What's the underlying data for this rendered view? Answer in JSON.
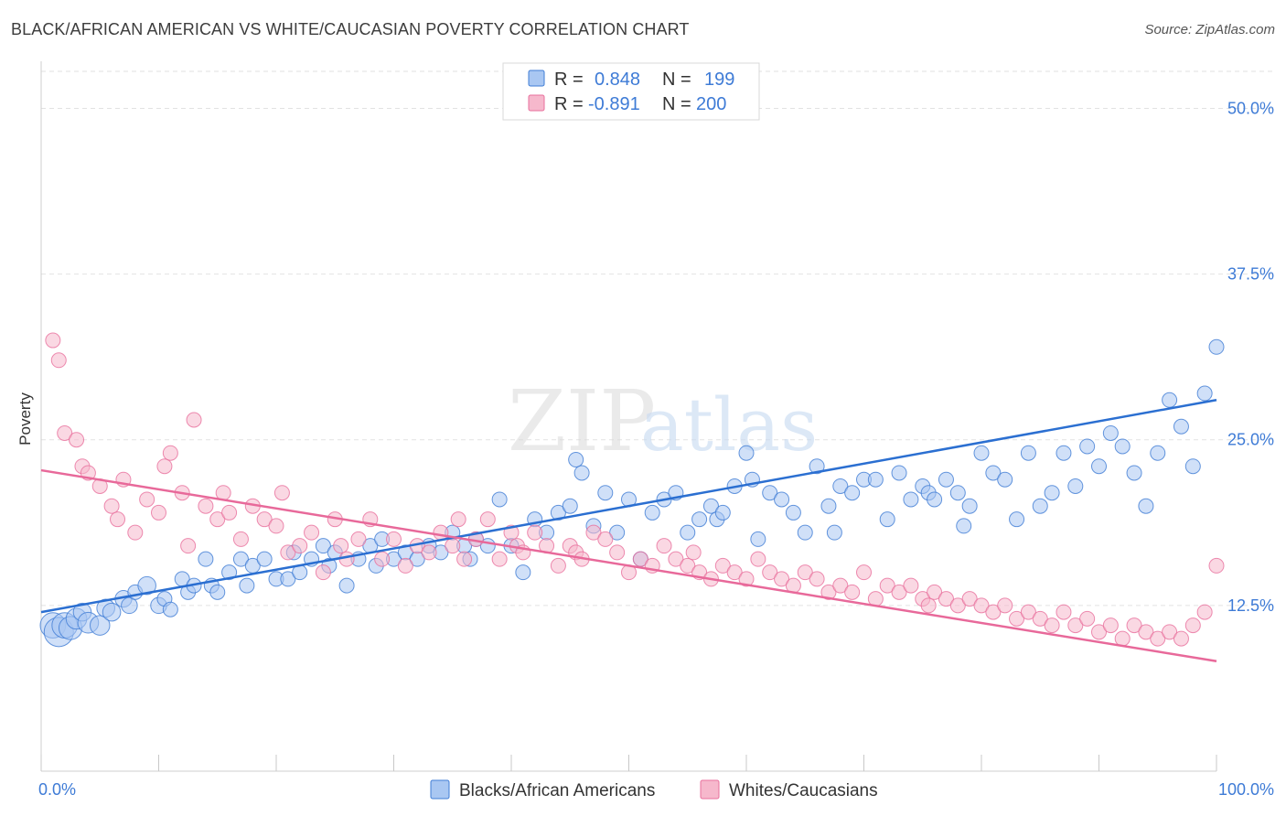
{
  "header": {
    "title": "BLACK/AFRICAN AMERICAN VS WHITE/CAUCASIAN POVERTY CORRELATION CHART",
    "source": "Source: ZipAtlas.com"
  },
  "watermark": {
    "zip": "ZIP",
    "atlas": "atlas"
  },
  "colors": {
    "blue": "#3f7cd5",
    "blue_fill": "#a9c7f2",
    "blue_line": "#2b6fd1",
    "pink": "#e86f9c",
    "pink_fill": "#f6b8cc",
    "pink_line": "#e8699a",
    "axis_text": "#3e7bd6"
  },
  "legend": {
    "r_label": "R =",
    "n_label": "N =",
    "rows": [
      {
        "r": "0.848",
        "n": "199"
      },
      {
        "r": "-0.891",
        "n": "200"
      }
    ]
  },
  "chart_data": {
    "type": "scatter",
    "title": "BLACK/AFRICAN AMERICAN VS WHITE/CAUCASIAN POVERTY CORRELATION CHART",
    "xlabel": "",
    "ylabel": "Poverty",
    "xlim": [
      0,
      100
    ],
    "ylim": [
      0,
      53
    ],
    "x_tick_labels": [
      "0.0%",
      "100.0%"
    ],
    "y_ticks": [
      12.5,
      25.0,
      37.5,
      50.0
    ],
    "y_tick_labels": [
      "12.5%",
      "25.0%",
      "37.5%",
      "50.0%"
    ],
    "grid": "horizontal dashed",
    "legend_position": "top-center",
    "series": [
      {
        "name": "Blacks/African Americans",
        "r": 0.848,
        "n": 199,
        "trend": {
          "x": [
            0,
            100
          ],
          "y": [
            12.0,
            28.0
          ]
        },
        "points": [
          [
            1,
            11,
            3
          ],
          [
            1.5,
            10.5,
            4
          ],
          [
            2,
            11,
            3
          ],
          [
            2.5,
            10.8,
            2.5
          ],
          [
            3,
            11.5,
            2
          ],
          [
            3.5,
            12,
            1.5
          ],
          [
            4,
            11.2,
            2
          ],
          [
            5,
            11,
            1.8
          ],
          [
            5.5,
            12.3,
            1.5
          ],
          [
            6,
            12,
            1.5
          ],
          [
            7,
            13,
            1.3
          ],
          [
            7.5,
            12.5,
            1.2
          ],
          [
            8,
            13.5,
            1
          ],
          [
            9,
            14,
            1.5
          ],
          [
            10,
            12.5,
            1.2
          ],
          [
            10.5,
            13,
            1
          ],
          [
            11,
            12.2,
            1
          ],
          [
            12,
            14.5,
            1
          ],
          [
            12.5,
            13.5,
            1
          ],
          [
            13,
            14,
            1
          ],
          [
            14,
            16,
            1
          ],
          [
            14.5,
            14,
            1
          ],
          [
            15,
            13.5,
            1
          ],
          [
            16,
            15,
            1
          ],
          [
            17,
            16,
            1
          ],
          [
            17.5,
            14,
            1
          ],
          [
            18,
            15.5,
            1
          ],
          [
            19,
            16,
            1
          ],
          [
            20,
            14.5,
            1
          ],
          [
            21,
            14.5,
            1
          ],
          [
            21.5,
            16.5,
            1
          ],
          [
            22,
            15,
            1
          ],
          [
            23,
            16,
            1
          ],
          [
            24,
            17,
            1
          ],
          [
            24.5,
            15.5,
            1
          ],
          [
            25,
            16.5,
            1
          ],
          [
            26,
            14,
            1
          ],
          [
            27,
            16,
            1
          ],
          [
            28,
            17,
            1
          ],
          [
            28.5,
            15.5,
            1
          ],
          [
            29,
            17.5,
            1
          ],
          [
            30,
            16,
            1
          ],
          [
            31,
            16.5,
            1
          ],
          [
            32,
            16,
            1
          ],
          [
            33,
            17,
            1
          ],
          [
            34,
            16.5,
            1
          ],
          [
            35,
            18,
            1
          ],
          [
            36,
            17,
            1
          ],
          [
            36.5,
            16,
            1
          ],
          [
            37,
            17.5,
            1
          ],
          [
            38,
            17,
            1
          ],
          [
            39,
            20.5,
            1
          ],
          [
            40,
            17,
            1
          ],
          [
            41,
            15,
            1
          ],
          [
            42,
            19,
            1
          ],
          [
            43,
            18,
            1
          ],
          [
            44,
            19.5,
            1
          ],
          [
            45,
            20,
            1
          ],
          [
            45.5,
            23.5,
            1
          ],
          [
            46,
            22.5,
            1
          ],
          [
            47,
            18.5,
            1
          ],
          [
            48,
            21,
            1
          ],
          [
            49,
            18,
            1
          ],
          [
            50,
            20.5,
            1
          ],
          [
            51,
            16,
            1
          ],
          [
            52,
            19.5,
            1
          ],
          [
            53,
            20.5,
            1
          ],
          [
            54,
            21,
            1
          ],
          [
            55,
            18,
            1
          ],
          [
            56,
            19,
            1
          ],
          [
            57,
            20,
            1
          ],
          [
            57.5,
            19,
            1
          ],
          [
            58,
            19.5,
            1
          ],
          [
            59,
            21.5,
            1
          ],
          [
            60,
            24,
            1
          ],
          [
            60.5,
            22,
            1
          ],
          [
            61,
            17.5,
            1
          ],
          [
            62,
            21,
            1
          ],
          [
            63,
            20.5,
            1
          ],
          [
            64,
            19.5,
            1
          ],
          [
            65,
            18,
            1
          ],
          [
            66,
            23,
            1
          ],
          [
            67,
            20,
            1
          ],
          [
            67.5,
            18,
            1
          ],
          [
            68,
            21.5,
            1
          ],
          [
            69,
            21,
            1
          ],
          [
            70,
            22,
            1
          ],
          [
            71,
            22,
            1
          ],
          [
            72,
            19,
            1
          ],
          [
            73,
            22.5,
            1
          ],
          [
            74,
            20.5,
            1
          ],
          [
            75,
            21.5,
            1
          ],
          [
            75.5,
            21,
            1
          ],
          [
            76,
            20.5,
            1
          ],
          [
            77,
            22,
            1
          ],
          [
            78,
            21,
            1
          ],
          [
            78.5,
            18.5,
            1
          ],
          [
            79,
            20,
            1
          ],
          [
            80,
            24,
            1
          ],
          [
            81,
            22.5,
            1
          ],
          [
            82,
            22,
            1
          ],
          [
            83,
            19,
            1
          ],
          [
            84,
            24,
            1
          ],
          [
            85,
            20,
            1
          ],
          [
            86,
            21,
            1
          ],
          [
            87,
            24,
            1
          ],
          [
            88,
            21.5,
            1
          ],
          [
            89,
            24.5,
            1
          ],
          [
            90,
            23,
            1
          ],
          [
            91,
            25.5,
            1
          ],
          [
            92,
            24.5,
            1
          ],
          [
            93,
            22.5,
            1
          ],
          [
            94,
            20,
            1
          ],
          [
            95,
            24,
            1
          ],
          [
            96,
            28,
            1
          ],
          [
            97,
            26,
            1
          ],
          [
            98,
            23,
            1
          ],
          [
            99,
            28.5,
            1
          ],
          [
            100,
            32,
            1
          ]
        ]
      },
      {
        "name": "Whites/Caucasians",
        "r": -0.891,
        "n": 200,
        "trend": {
          "x": [
            0,
            100
          ],
          "y": [
            22.7,
            8.3
          ]
        },
        "points": [
          [
            1,
            32.5,
            1
          ],
          [
            1.5,
            31,
            1
          ],
          [
            2,
            25.5,
            1
          ],
          [
            3,
            25,
            1
          ],
          [
            3.5,
            23,
            1
          ],
          [
            4,
            22.5,
            1
          ],
          [
            5,
            21.5,
            1
          ],
          [
            6,
            20,
            1
          ],
          [
            6.5,
            19,
            1
          ],
          [
            7,
            22,
            1
          ],
          [
            8,
            18,
            1
          ],
          [
            9,
            20.5,
            1
          ],
          [
            10,
            19.5,
            1
          ],
          [
            10.5,
            23,
            1
          ],
          [
            11,
            24,
            1
          ],
          [
            12,
            21,
            1
          ],
          [
            12.5,
            17,
            1
          ],
          [
            13,
            26.5,
            1
          ],
          [
            14,
            20,
            1
          ],
          [
            15,
            19,
            1
          ],
          [
            15.5,
            21,
            1
          ],
          [
            16,
            19.5,
            1
          ],
          [
            17,
            17.5,
            1
          ],
          [
            18,
            20,
            1
          ],
          [
            19,
            19,
            1
          ],
          [
            20,
            18.5,
            1
          ],
          [
            20.5,
            21,
            1
          ],
          [
            21,
            16.5,
            1
          ],
          [
            22,
            17,
            1
          ],
          [
            23,
            18,
            1
          ],
          [
            24,
            15,
            1
          ],
          [
            25,
            19,
            1
          ],
          [
            25.5,
            17,
            1
          ],
          [
            26,
            16,
            1
          ],
          [
            27,
            17.5,
            1
          ],
          [
            28,
            19,
            1
          ],
          [
            29,
            16,
            1
          ],
          [
            30,
            17.5,
            1
          ],
          [
            31,
            15.5,
            1
          ],
          [
            32,
            17,
            1
          ],
          [
            33,
            16.5,
            1
          ],
          [
            34,
            18,
            1
          ],
          [
            35,
            17,
            1
          ],
          [
            35.5,
            19,
            1
          ],
          [
            36,
            16,
            1
          ],
          [
            37,
            17.5,
            1
          ],
          [
            38,
            19,
            1
          ],
          [
            39,
            16,
            1
          ],
          [
            40,
            18,
            1
          ],
          [
            40.5,
            17,
            1
          ],
          [
            41,
            16.5,
            1
          ],
          [
            42,
            18,
            1
          ],
          [
            43,
            17,
            1
          ],
          [
            44,
            15.5,
            1
          ],
          [
            45,
            17,
            1
          ],
          [
            45.5,
            16.5,
            1
          ],
          [
            46,
            16,
            1
          ],
          [
            47,
            18,
            1
          ],
          [
            48,
            17.5,
            1
          ],
          [
            49,
            16.5,
            1
          ],
          [
            50,
            15,
            1
          ],
          [
            51,
            16,
            1
          ],
          [
            52,
            15.5,
            1
          ],
          [
            53,
            17,
            1
          ],
          [
            54,
            16,
            1
          ],
          [
            55,
            15.5,
            1
          ],
          [
            55.5,
            16.5,
            1
          ],
          [
            56,
            15,
            1
          ],
          [
            57,
            14.5,
            1
          ],
          [
            58,
            15.5,
            1
          ],
          [
            59,
            15,
            1
          ],
          [
            60,
            14.5,
            1
          ],
          [
            61,
            16,
            1
          ],
          [
            62,
            15,
            1
          ],
          [
            63,
            14.5,
            1
          ],
          [
            64,
            14,
            1
          ],
          [
            65,
            15,
            1
          ],
          [
            66,
            14.5,
            1
          ],
          [
            67,
            13.5,
            1
          ],
          [
            68,
            14,
            1
          ],
          [
            69,
            13.5,
            1
          ],
          [
            70,
            15,
            1
          ],
          [
            71,
            13,
            1
          ],
          [
            72,
            14,
            1
          ],
          [
            73,
            13.5,
            1
          ],
          [
            74,
            14,
            1
          ],
          [
            75,
            13,
            1
          ],
          [
            75.5,
            12.5,
            1
          ],
          [
            76,
            13.5,
            1
          ],
          [
            77,
            13,
            1
          ],
          [
            78,
            12.5,
            1
          ],
          [
            79,
            13,
            1
          ],
          [
            80,
            12.5,
            1
          ],
          [
            81,
            12,
            1
          ],
          [
            82,
            12.5,
            1
          ],
          [
            83,
            11.5,
            1
          ],
          [
            84,
            12,
            1
          ],
          [
            85,
            11.5,
            1
          ],
          [
            86,
            11,
            1
          ],
          [
            87,
            12,
            1
          ],
          [
            88,
            11,
            1
          ],
          [
            89,
            11.5,
            1
          ],
          [
            90,
            10.5,
            1
          ],
          [
            91,
            11,
            1
          ],
          [
            92,
            10,
            1
          ],
          [
            93,
            11,
            1
          ],
          [
            94,
            10.5,
            1
          ],
          [
            95,
            10,
            1
          ],
          [
            96,
            10.5,
            1
          ],
          [
            97,
            10,
            1
          ],
          [
            98,
            11,
            1
          ],
          [
            99,
            12,
            1
          ],
          [
            100,
            15.5,
            1
          ]
        ]
      }
    ]
  },
  "bottom_legend": [
    "Blacks/African Americans",
    "Whites/Caucasians"
  ]
}
